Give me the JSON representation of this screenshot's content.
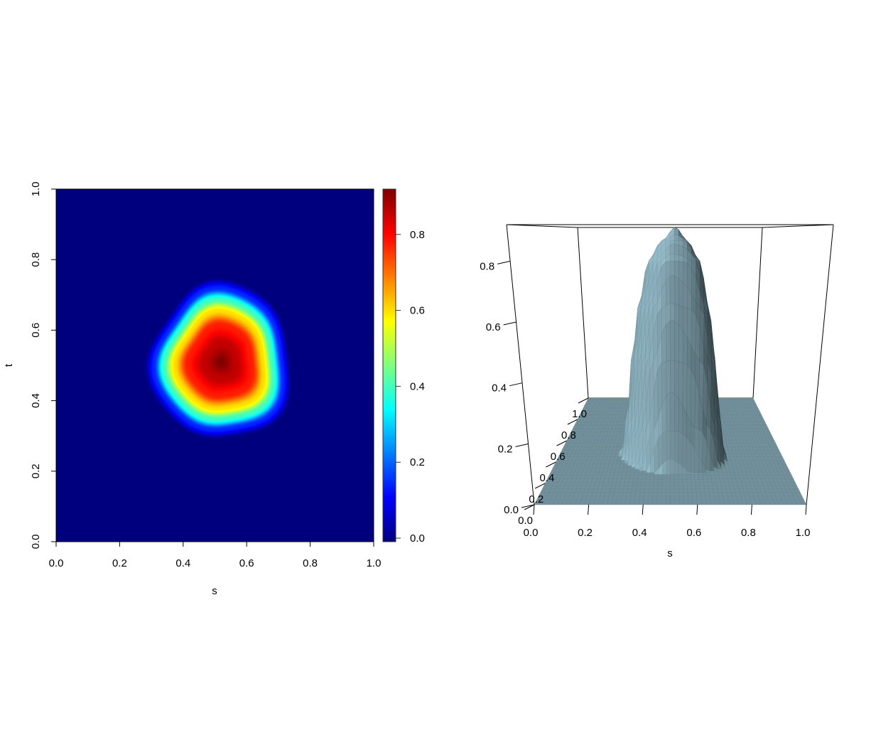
{
  "chart_data": [
    {
      "type": "heatmap",
      "xlabel": "s",
      "ylabel": "t",
      "xlim": [
        0,
        1
      ],
      "ylim": [
        0,
        1
      ],
      "x_ticks": [
        "0.0",
        "0.2",
        "0.4",
        "0.6",
        "0.8",
        "1.0"
      ],
      "y_ticks": [
        "0.0",
        "0.2",
        "0.4",
        "0.6",
        "0.8",
        "1.0"
      ],
      "colorbar": {
        "ticks": [
          "0.0",
          "0.2",
          "0.4",
          "0.6",
          "0.8"
        ],
        "zlim": [
          0,
          0.92
        ],
        "colormap": [
          "#00007F",
          "#0000FF",
          "#007FFF",
          "#00FFFF",
          "#7FFF7F",
          "#FFFF00",
          "#FF7F00",
          "#FF0000",
          "#7F0000"
        ]
      },
      "surface": {
        "center": [
          0.52,
          0.51
        ],
        "radial_profile_r": [
          0,
          0.05,
          0.1,
          0.14,
          0.17,
          0.2,
          0.23,
          0.3
        ],
        "radial_profile_z": [
          0.92,
          0.86,
          0.78,
          0.6,
          0.4,
          0.15,
          0.0,
          0.0
        ]
      },
      "grid": false
    },
    {
      "type": "surface3d",
      "xlabel": "s",
      "x_ticks": [
        "0.0",
        "0.2",
        "0.4",
        "0.6",
        "0.8",
        "1.0"
      ],
      "y_ticks": [
        "0.0",
        "0.2",
        "0.4",
        "0.6",
        "0.8",
        "1.0"
      ],
      "z_ticks": [
        "0.0",
        "0.2",
        "0.4",
        "0.6",
        "0.8"
      ],
      "zlim": [
        0,
        0.92
      ],
      "surface_color": "#8fb3c0",
      "grid": false
    }
  ]
}
